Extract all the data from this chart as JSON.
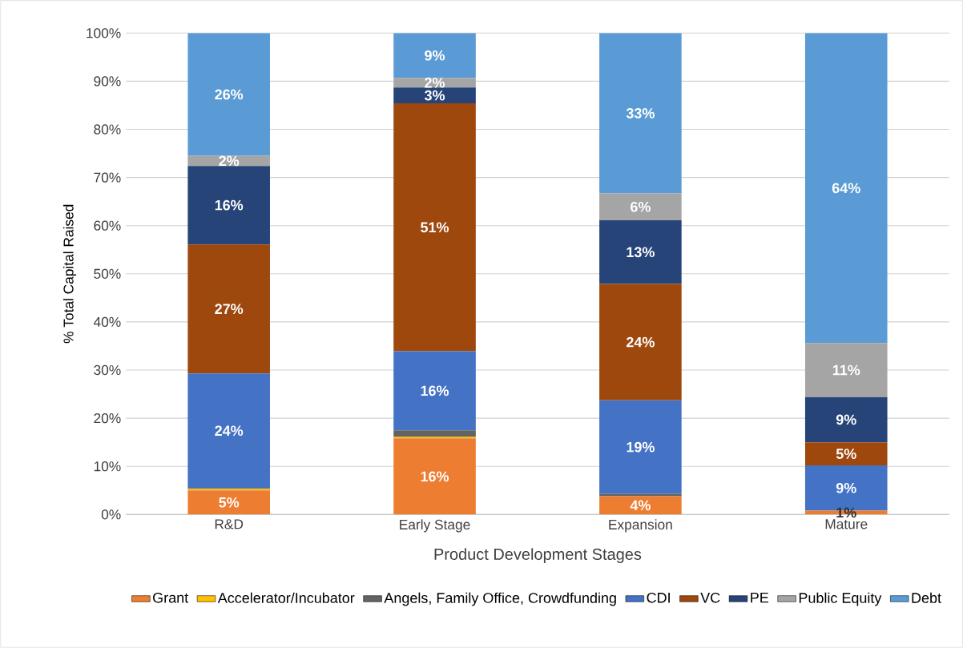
{
  "chart_data": {
    "type": "bar",
    "stacked": true,
    "xlabel": "Product Development Stages",
    "ylabel": "% Total Capital Raised",
    "categories": [
      "R&D",
      "Early Stage",
      "Expansion",
      "Mature"
    ],
    "series": [
      {
        "name": "Grant",
        "color": "#ed7d31",
        "values": [
          5.0,
          15.8,
          3.8,
          0.8
        ],
        "value_labels": [
          "5%",
          "16%",
          "4%",
          "1%"
        ]
      },
      {
        "name": "Accelerator/Incubator",
        "color": "#ffc000",
        "values": [
          0.3,
          0.3,
          0,
          0
        ],
        "value_labels": [
          null,
          null,
          null,
          null
        ]
      },
      {
        "name": "Angels, Family Office, Crowdfunding",
        "color": "#636363",
        "values": [
          0.2,
          1.4,
          0.5,
          0
        ],
        "value_labels": [
          null,
          null,
          null,
          null
        ]
      },
      {
        "name": "CDI",
        "color": "#4472c4",
        "values": [
          23.8,
          16.4,
          19.4,
          9.4
        ],
        "value_labels": [
          "24%",
          "16%",
          "19%",
          "9%"
        ]
      },
      {
        "name": "VC",
        "color": "#9e480e",
        "values": [
          26.8,
          51.5,
          24.2,
          4.8
        ],
        "value_labels": [
          "27%",
          "51%",
          "24%",
          "5%"
        ]
      },
      {
        "name": "PE",
        "color": "#264478",
        "values": [
          16.3,
          3.3,
          13.2,
          9.4
        ],
        "value_labels": [
          "16%",
          "3%",
          "13%",
          "9%"
        ]
      },
      {
        "name": "Public Equity",
        "color": "#a5a5a5",
        "values": [
          2.1,
          2.0,
          5.6,
          11.2
        ],
        "value_labels": [
          "2%",
          "2%",
          "6%",
          "11%"
        ]
      },
      {
        "name": "Debt",
        "color": "#5b9bd5",
        "values": [
          25.5,
          9.3,
          33.3,
          64.4
        ],
        "value_labels": [
          "26%",
          "9%",
          "33%",
          "64%"
        ]
      }
    ],
    "ylim": [
      0,
      100
    ],
    "yticks": [
      {
        "value": 0,
        "label": "0%"
      },
      {
        "value": 10,
        "label": "10%"
      },
      {
        "value": 20,
        "label": "20%"
      },
      {
        "value": 30,
        "label": "30%"
      },
      {
        "value": 40,
        "label": "40%"
      },
      {
        "value": 50,
        "label": "50%"
      },
      {
        "value": 60,
        "label": "60%"
      },
      {
        "value": 70,
        "label": "70%"
      },
      {
        "value": 80,
        "label": "80%"
      },
      {
        "value": 90,
        "label": "90%"
      },
      {
        "value": 100,
        "label": "100%"
      }
    ],
    "grid": "y",
    "legend": "bottom"
  }
}
